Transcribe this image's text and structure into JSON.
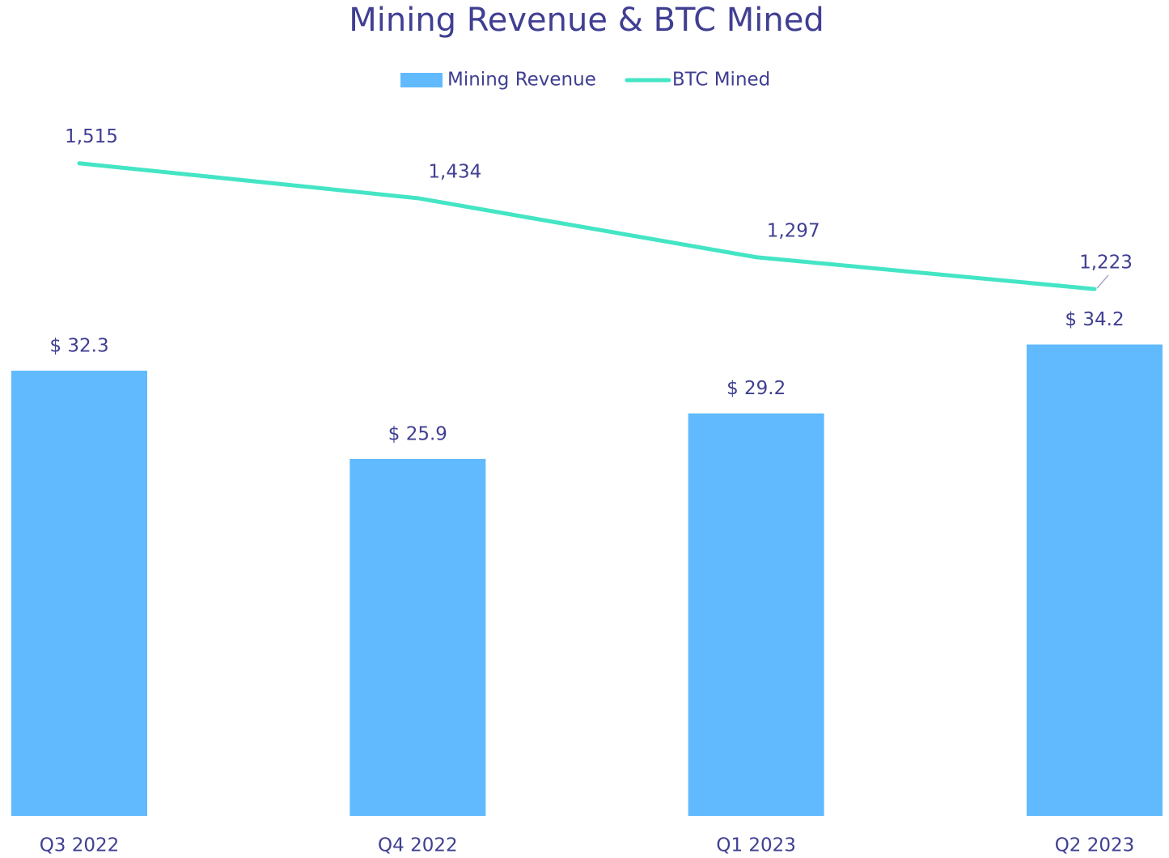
{
  "chart_data": {
    "type": "bar_line",
    "title": "Mining Revenue & BTC Mined",
    "categories": [
      "Q3 2022",
      "Q4 2022",
      "Q1 2023",
      "Q2 2023"
    ],
    "series": [
      {
        "name": "Mining Revenue",
        "type": "bar",
        "color": "#61bafd",
        "axis": "y",
        "values": [
          32.3,
          25.9,
          29.2,
          34.2
        ],
        "value_labels": [
          "$ 32.3",
          "$ 25.9",
          "$ 29.2",
          "$ 34.2"
        ]
      },
      {
        "name": "BTC Mined",
        "type": "line",
        "color": "#44e5c4",
        "axis": "y2",
        "values": [
          1515,
          1434,
          1297,
          1223
        ],
        "value_labels": [
          "1,515",
          "1,434",
          "1,297",
          "1,223"
        ]
      }
    ],
    "ylim": [
      0,
      50
    ],
    "y2lim": [
      0,
      1600
    ],
    "legend": "top"
  }
}
